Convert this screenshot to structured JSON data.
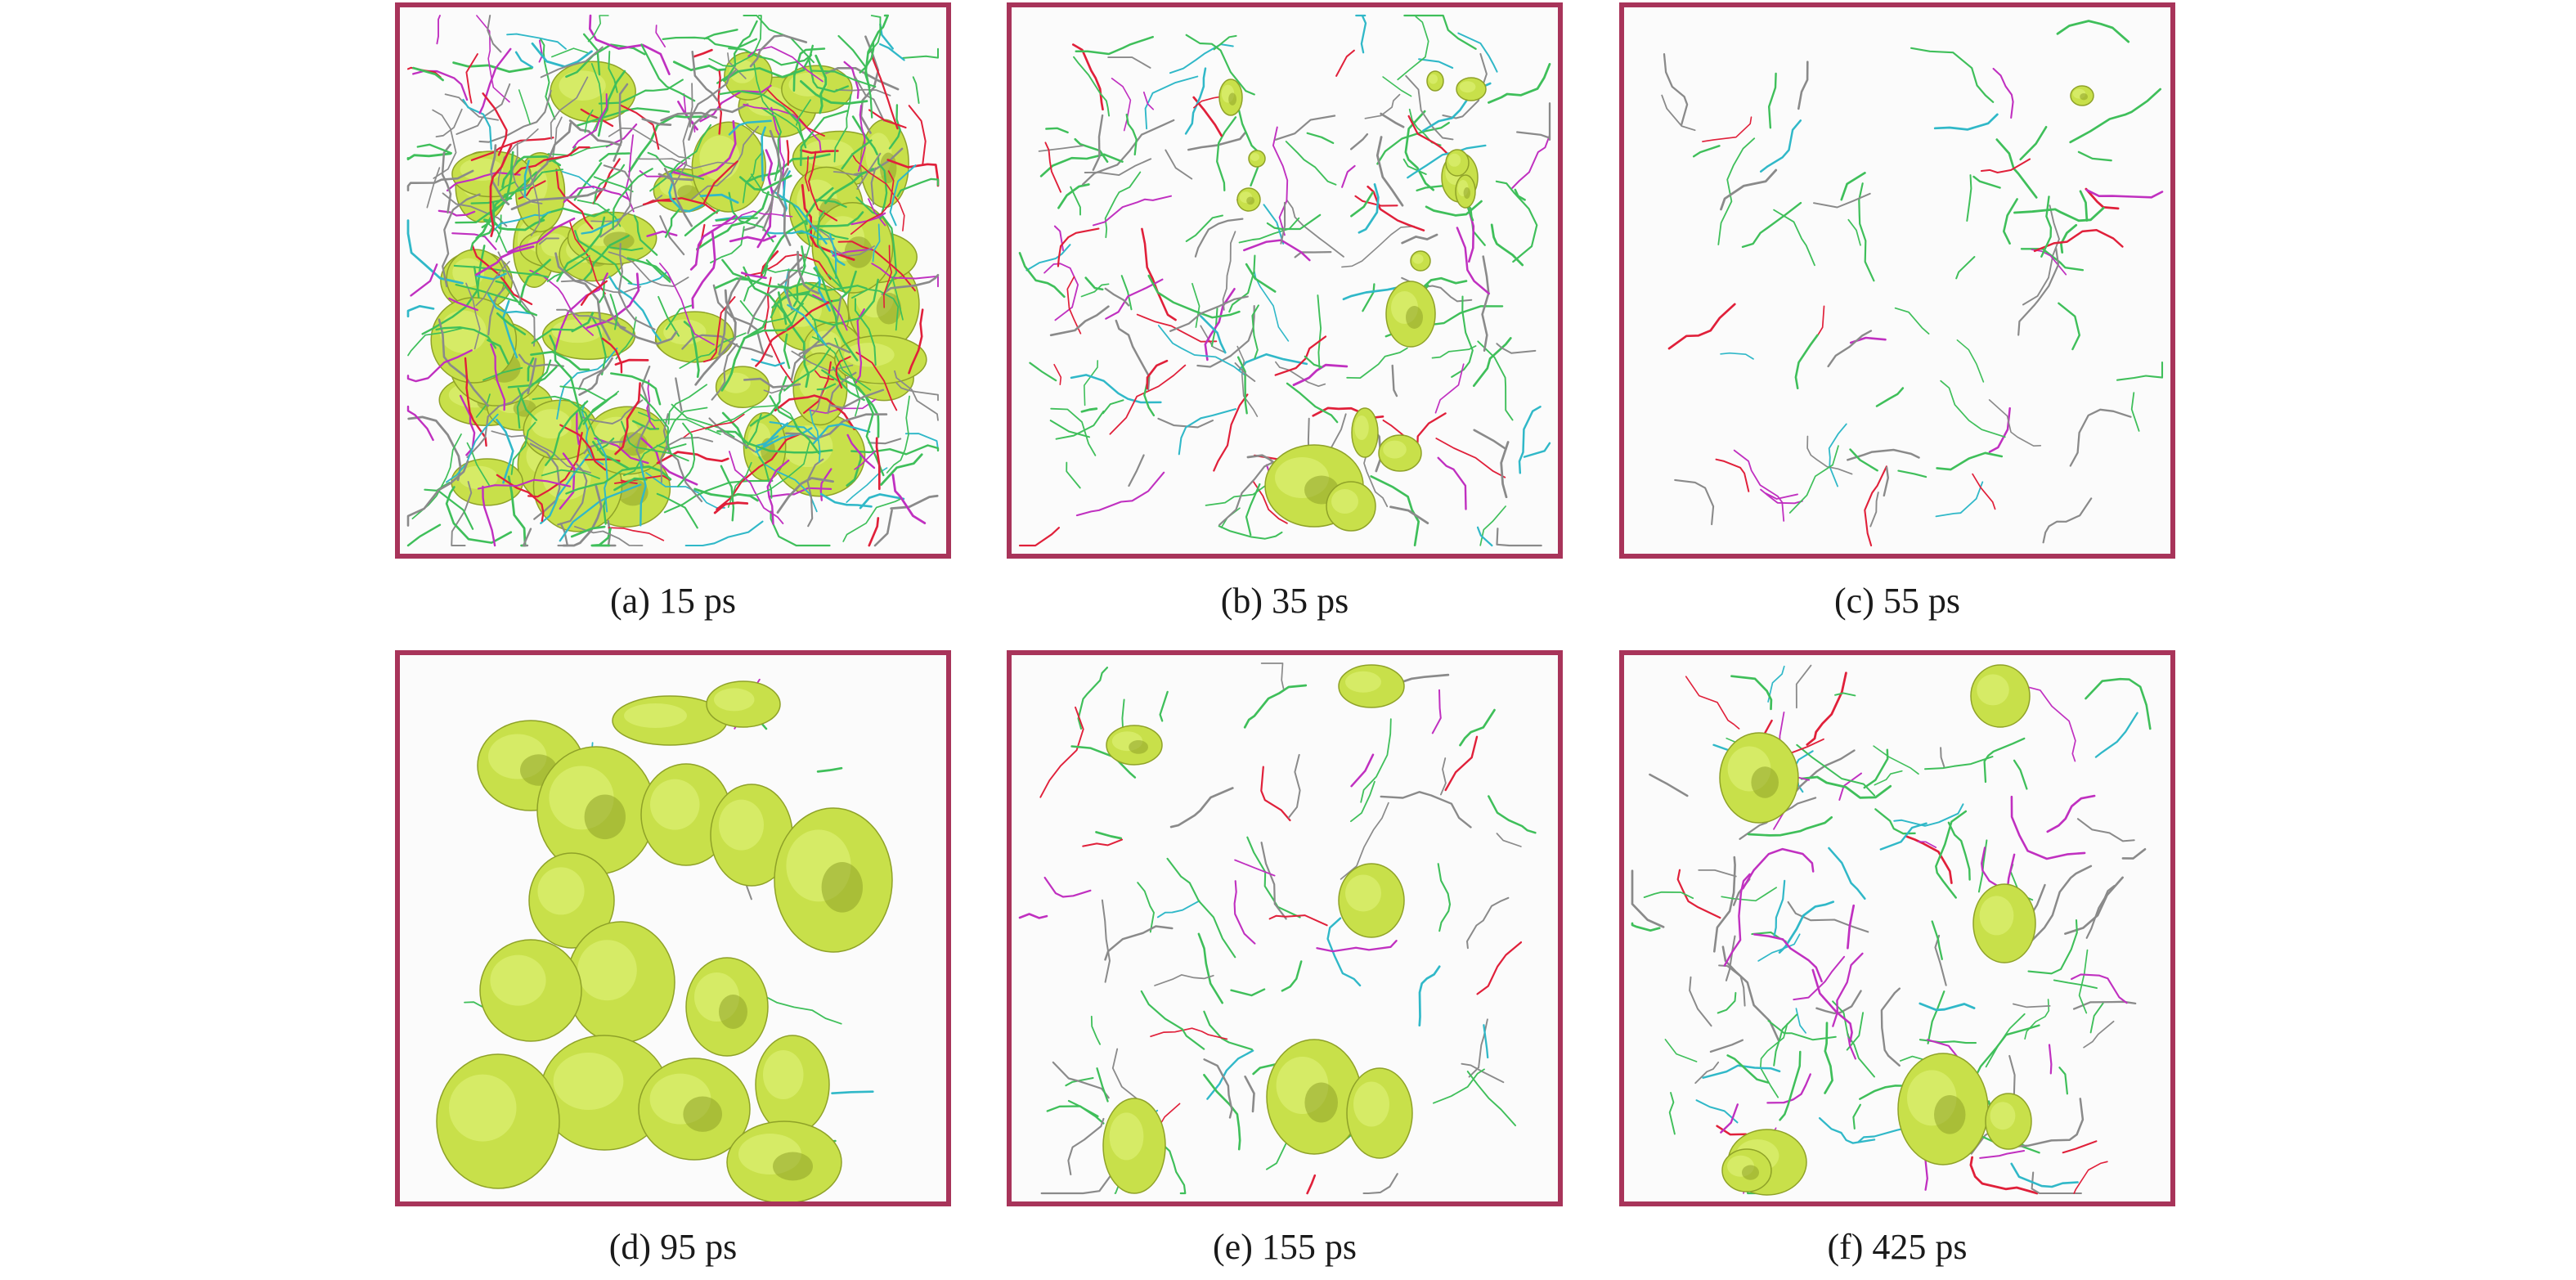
{
  "figure": {
    "colors": {
      "frame": "#a8345a",
      "void": "#c8e04a",
      "void_dark": "#8fa228",
      "dislocation_green": "#3fbf5a",
      "dislocation_gray": "#8a8a8a",
      "dislocation_red": "#e0203a",
      "dislocation_magenta": "#c030c0",
      "dislocation_cyan": "#30b8c8"
    },
    "panels": [
      {
        "id": "a",
        "caption": "(a) 15 ps",
        "line_density": 0.95,
        "void_count": 45
      },
      {
        "id": "b",
        "caption": "(b) 35 ps",
        "line_density": 0.35,
        "void_count": 14
      },
      {
        "id": "c",
        "caption": "(c) 55 ps",
        "line_density": 0.14,
        "void_count": 1
      },
      {
        "id": "d",
        "caption": "(d) 95 ps",
        "line_density": 0.02,
        "void_count": 16
      },
      {
        "id": "e",
        "caption": "(e) 155 ps",
        "line_density": 0.15,
        "void_count": 6
      },
      {
        "id": "f",
        "caption": "(f) 425 ps",
        "line_density": 0.26,
        "void_count": 7
      }
    ]
  }
}
